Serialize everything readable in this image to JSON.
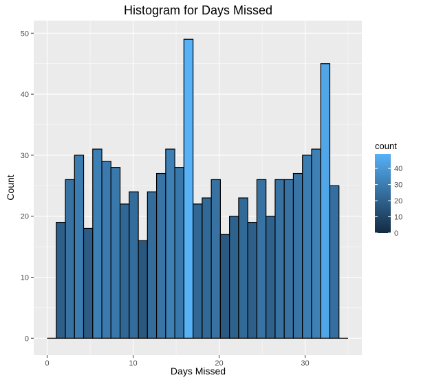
{
  "chart_data": {
    "type": "bar",
    "subtype": "histogram",
    "title": "Histogram for Days Missed",
    "xlabel": "Days Missed",
    "ylabel": "Count",
    "xlim": [
      -1.5,
      36.5
    ],
    "ylim": [
      -2.5,
      51.5
    ],
    "xticks": [
      0,
      10,
      20,
      30
    ],
    "yticks": [
      0,
      10,
      20,
      30,
      40,
      50
    ],
    "grid": true,
    "bin_width": 1.17,
    "bin_start": 0.0,
    "bins": [
      {
        "x": 0.585,
        "count": 0
      },
      {
        "x": 1.755,
        "count": 19
      },
      {
        "x": 2.925,
        "count": 26
      },
      {
        "x": 4.095,
        "count": 30
      },
      {
        "x": 5.265,
        "count": 18
      },
      {
        "x": 6.435,
        "count": 31
      },
      {
        "x": 7.605,
        "count": 29
      },
      {
        "x": 8.775,
        "count": 28
      },
      {
        "x": 9.945,
        "count": 22
      },
      {
        "x": 11.115,
        "count": 24
      },
      {
        "x": 12.285,
        "count": 16
      },
      {
        "x": 13.455,
        "count": 24
      },
      {
        "x": 14.625,
        "count": 27
      },
      {
        "x": 15.795,
        "count": 31
      },
      {
        "x": 16.965,
        "count": 28
      },
      {
        "x": 18.135,
        "count": 49
      },
      {
        "x": 19.305,
        "count": 22
      },
      {
        "x": 20.475,
        "count": 23
      },
      {
        "x": 21.645,
        "count": 26
      },
      {
        "x": 22.815,
        "count": 17
      },
      {
        "x": 23.985,
        "count": 20
      },
      {
        "x": 25.155,
        "count": 23
      },
      {
        "x": 26.325,
        "count": 19
      },
      {
        "x": 27.495,
        "count": 26
      },
      {
        "x": 28.665,
        "count": 20
      },
      {
        "x": 29.835,
        "count": 26
      },
      {
        "x": 31.005,
        "count": 26
      },
      {
        "x": 32.175,
        "count": 27
      },
      {
        "x": 33.345,
        "count": 30
      },
      {
        "x": 34.515,
        "count": 31
      },
      {
        "x": 35.685,
        "count": 45
      },
      {
        "x": 36.855,
        "count": 25
      },
      {
        "x": 38.025,
        "count": 0
      }
    ],
    "legend": {
      "title": "count",
      "placement": "right",
      "ticks": [
        0,
        10,
        20,
        30,
        40
      ],
      "range": [
        0,
        49
      ],
      "color_low": "#132B43",
      "color_high": "#56B1F7"
    },
    "colors": {
      "panel_background": "#EBEBEB",
      "grid": "#FFFFFF",
      "bar_outline": "#000000"
    }
  }
}
